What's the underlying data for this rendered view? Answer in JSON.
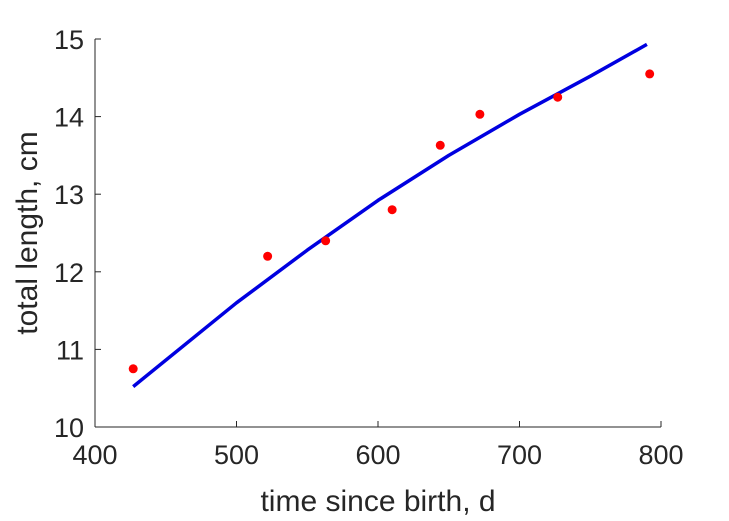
{
  "chart_data": {
    "type": "scatter",
    "xlabel": "time since birth, d",
    "ylabel": "total length, cm",
    "xlim": [
      400,
      800
    ],
    "ylim": [
      10,
      15
    ],
    "xticks": [
      400,
      500,
      600,
      700,
      800
    ],
    "yticks": [
      10,
      11,
      12,
      13,
      14,
      15
    ],
    "grid": false,
    "series": [
      {
        "kind": "points",
        "color": "#ff0000",
        "points": [
          {
            "x": 427,
            "y": 10.75
          },
          {
            "x": 522,
            "y": 12.2
          },
          {
            "x": 563,
            "y": 12.4
          },
          {
            "x": 610,
            "y": 12.8
          },
          {
            "x": 644,
            "y": 13.63
          },
          {
            "x": 672,
            "y": 14.03
          },
          {
            "x": 727,
            "y": 14.25
          },
          {
            "x": 792,
            "y": 14.55
          }
        ]
      },
      {
        "kind": "line",
        "color": "#0000e0",
        "points": [
          {
            "x": 427,
            "y": 10.52
          },
          {
            "x": 500,
            "y": 11.6
          },
          {
            "x": 550,
            "y": 12.28
          },
          {
            "x": 600,
            "y": 12.92
          },
          {
            "x": 650,
            "y": 13.5
          },
          {
            "x": 700,
            "y": 14.03
          },
          {
            "x": 750,
            "y": 14.52
          },
          {
            "x": 790,
            "y": 14.93
          }
        ]
      }
    ]
  }
}
